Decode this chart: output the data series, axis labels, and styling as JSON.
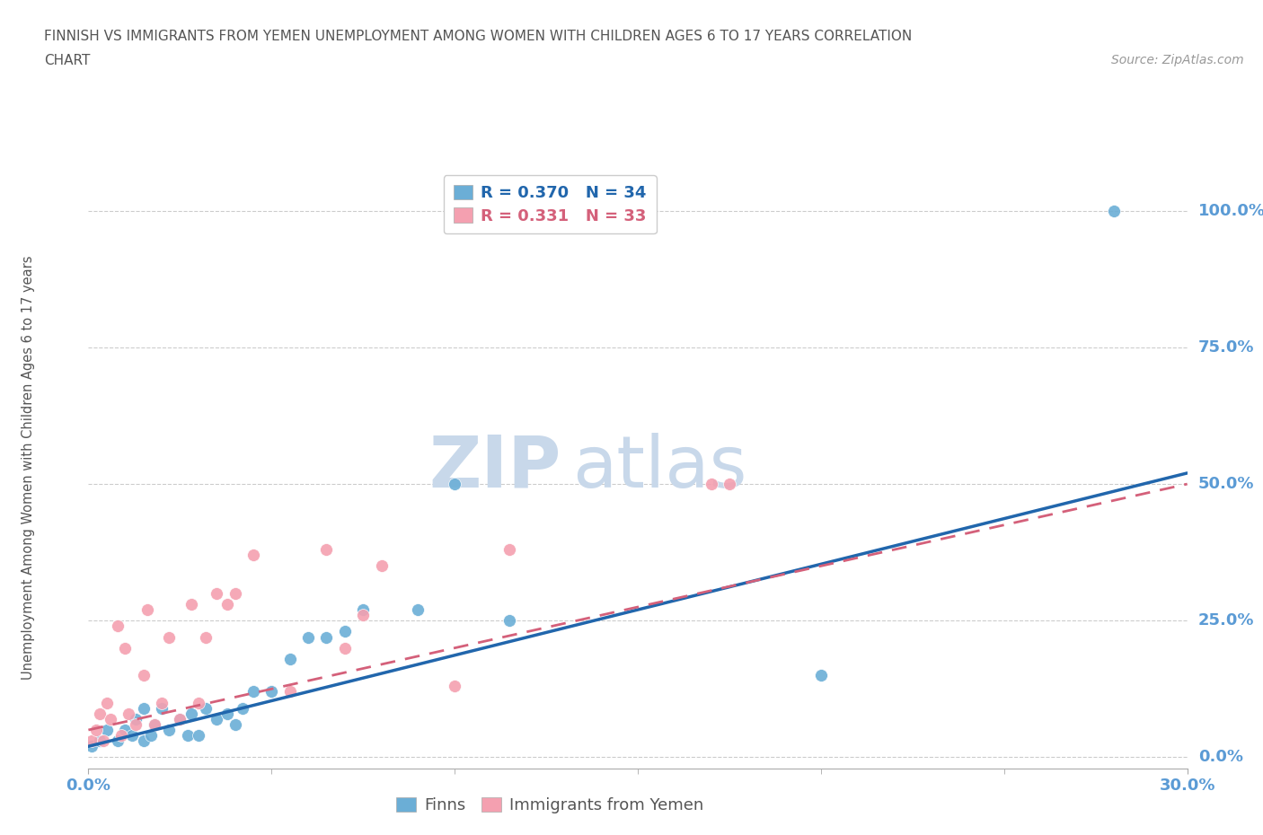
{
  "title_line1": "FINNISH VS IMMIGRANTS FROM YEMEN UNEMPLOYMENT AMONG WOMEN WITH CHILDREN AGES 6 TO 17 YEARS CORRELATION",
  "title_line2": "CHART",
  "source": "Source: ZipAtlas.com",
  "ylabel": "Unemployment Among Women with Children Ages 6 to 17 years",
  "xlim": [
    0.0,
    0.3
  ],
  "ylim": [
    -0.02,
    1.08
  ],
  "ytick_labels": [
    "0.0%",
    "25.0%",
    "50.0%",
    "75.0%",
    "100.0%"
  ],
  "ytick_vals": [
    0.0,
    0.25,
    0.5,
    0.75,
    1.0
  ],
  "finns_R": 0.37,
  "finns_N": 34,
  "yemen_R": 0.331,
  "yemen_N": 33,
  "finns_color": "#6baed6",
  "yemen_color": "#f4a0b0",
  "finns_line_color": "#2166ac",
  "yemen_line_color": "#d4607a",
  "watermark_top": "ZIP",
  "watermark_bot": "atlas",
  "watermark_color": "#c8d8ea",
  "background_color": "#ffffff",
  "grid_color": "#cccccc",
  "title_color": "#555555",
  "axis_label_color": "#555555",
  "tick_label_color": "#5b9bd5",
  "finns_x": [
    0.001,
    0.003,
    0.005,
    0.008,
    0.01,
    0.012,
    0.013,
    0.015,
    0.015,
    0.017,
    0.018,
    0.02,
    0.022,
    0.025,
    0.027,
    0.028,
    0.03,
    0.032,
    0.035,
    0.038,
    0.04,
    0.042,
    0.045,
    0.05,
    0.055,
    0.06,
    0.065,
    0.07,
    0.075,
    0.09,
    0.1,
    0.115,
    0.2,
    0.28
  ],
  "finns_y": [
    0.02,
    0.03,
    0.05,
    0.03,
    0.05,
    0.04,
    0.07,
    0.03,
    0.09,
    0.04,
    0.06,
    0.09,
    0.05,
    0.07,
    0.04,
    0.08,
    0.04,
    0.09,
    0.07,
    0.08,
    0.06,
    0.09,
    0.12,
    0.12,
    0.18,
    0.22,
    0.22,
    0.23,
    0.27,
    0.27,
    0.5,
    0.25,
    0.15,
    1.0
  ],
  "yemen_x": [
    0.001,
    0.002,
    0.003,
    0.004,
    0.005,
    0.006,
    0.008,
    0.009,
    0.01,
    0.011,
    0.013,
    0.015,
    0.016,
    0.018,
    0.02,
    0.022,
    0.025,
    0.028,
    0.03,
    0.032,
    0.035,
    0.038,
    0.04,
    0.045,
    0.055,
    0.065,
    0.07,
    0.075,
    0.08,
    0.1,
    0.115,
    0.17,
    0.175
  ],
  "yemen_y": [
    0.03,
    0.05,
    0.08,
    0.03,
    0.1,
    0.07,
    0.24,
    0.04,
    0.2,
    0.08,
    0.06,
    0.15,
    0.27,
    0.06,
    0.1,
    0.22,
    0.07,
    0.28,
    0.1,
    0.22,
    0.3,
    0.28,
    0.3,
    0.37,
    0.12,
    0.38,
    0.2,
    0.26,
    0.35,
    0.13,
    0.38,
    0.5,
    0.5
  ],
  "finns_line_x0": 0.0,
  "finns_line_y0": 0.02,
  "finns_line_x1": 0.3,
  "finns_line_y1": 0.52,
  "yemen_line_x0": 0.0,
  "yemen_line_y0": 0.05,
  "yemen_line_x1": 0.3,
  "yemen_line_y1": 0.5
}
